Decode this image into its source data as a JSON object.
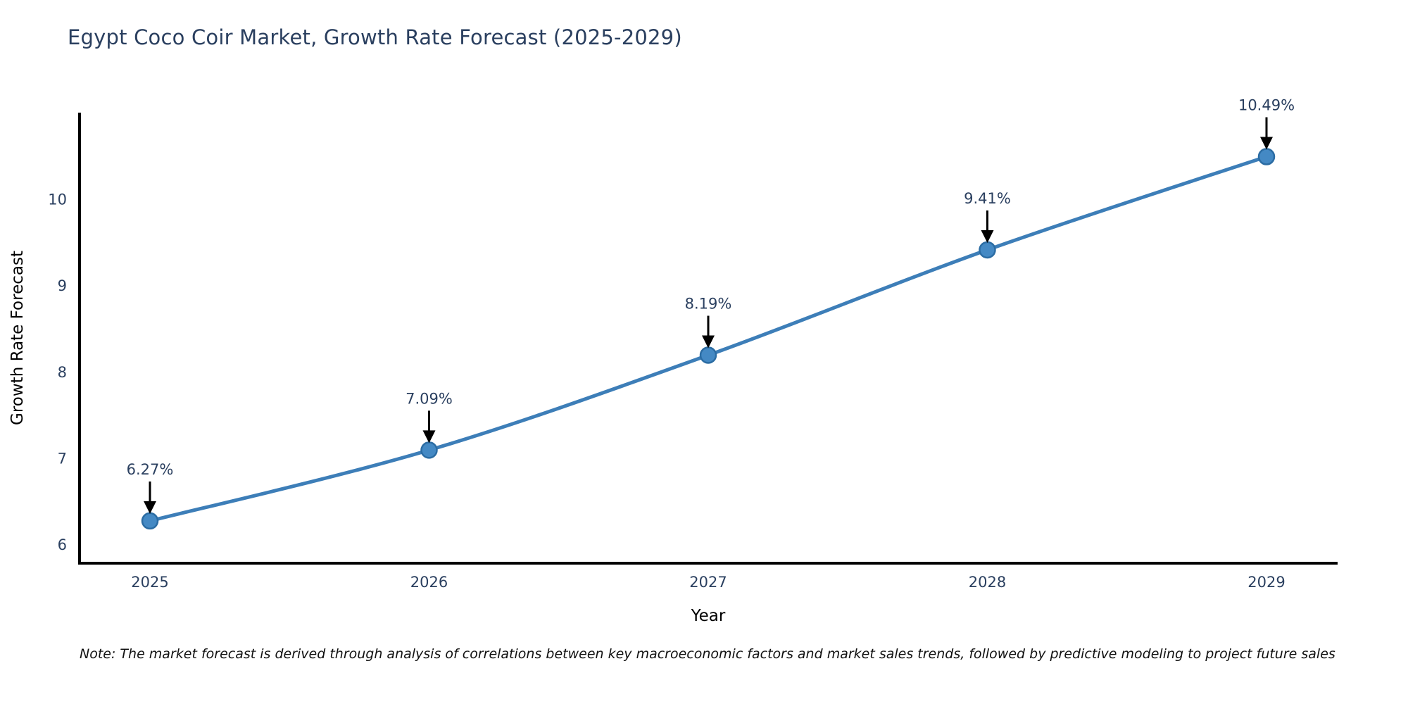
{
  "title": "Egypt Coco Coir Market, Growth Rate Forecast (2025-2029)",
  "note": "Note: The market forecast is derived through analysis of correlations between key macroeconomic factors and market sales trends, followed by predictive modeling to project future sales",
  "chart_data": {
    "type": "line",
    "title": "Egypt Coco Coir Market, Growth Rate Forecast (2025-2029)",
    "xlabel": "Year",
    "ylabel": "Growth Rate Forecast",
    "x": [
      2025,
      2026,
      2027,
      2028,
      2029
    ],
    "series": [
      {
        "name": "Growth Rate Forecast",
        "values": [
          6.27,
          7.09,
          8.19,
          9.41,
          10.49
        ]
      }
    ],
    "point_labels": [
      "6.27%",
      "7.09%",
      "8.19%",
      "9.41%",
      "10.49%"
    ],
    "yticks": [
      6,
      7,
      8,
      9,
      10
    ],
    "ylim": [
      5.78,
      11.0
    ],
    "grid": false,
    "legend_position": "none",
    "line_shape": "spline",
    "colors": {
      "line": "#3d7eb8",
      "marker_fill": "#4489c4",
      "marker_edge": "#2b6ca3",
      "arrow": "#000000",
      "text": "#2a3f5f",
      "axis": "#000000",
      "note_text": "#111111",
      "background": "#ffffff"
    }
  }
}
